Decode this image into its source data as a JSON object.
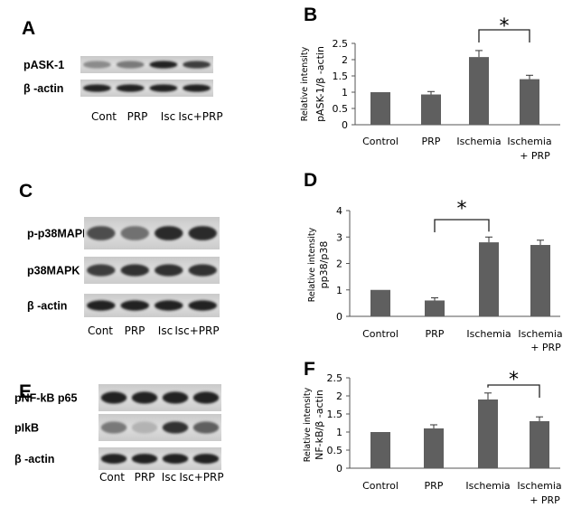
{
  "blots": [
    {
      "letter": "A",
      "bands": [
        {
          "label": "pASK-1",
          "intensity": [
            0.35,
            0.45,
            0.95,
            0.8
          ]
        },
        {
          "label": "β -actin",
          "intensity": [
            0.95,
            0.95,
            0.95,
            0.95
          ]
        }
      ],
      "lanes": [
        "Cont",
        "PRP",
        "Isc",
        "Isc+PRP"
      ]
    },
    {
      "letter": "C",
      "bands": [
        {
          "label": "p-p38MAPK",
          "intensity": [
            0.7,
            0.5,
            0.9,
            0.9
          ]
        },
        {
          "label": "p38MAPK",
          "intensity": [
            0.8,
            0.85,
            0.85,
            0.85
          ]
        },
        {
          "label": "β -actin",
          "intensity": [
            0.95,
            0.95,
            0.95,
            0.95
          ]
        }
      ],
      "lanes": [
        "Cont",
        "PRP",
        "Isc",
        "Isc+PRP"
      ]
    },
    {
      "letter": "E",
      "bands": [
        {
          "label": "pNF-kB p65",
          "intensity": [
            0.95,
            0.95,
            0.95,
            0.95
          ]
        },
        {
          "label": "pIkB",
          "intensity": [
            0.45,
            0.12,
            0.85,
            0.6
          ]
        },
        {
          "label": "β -actin",
          "intensity": [
            0.95,
            0.95,
            0.95,
            0.95
          ]
        }
      ],
      "lanes": [
        "Cont",
        "PRP",
        "Isc",
        "Isc+PRP"
      ]
    }
  ],
  "chart_data": [
    {
      "letter": "B",
      "type": "bar",
      "categories": [
        "Control",
        "PRP",
        "Ischemia",
        "Ischemia\n+ PRP"
      ],
      "values": [
        1.0,
        0.93,
        2.08,
        1.4
      ],
      "errors": [
        0,
        0.09,
        0.2,
        0.12
      ],
      "ylabel_top": "Relative intensity",
      "ylabel_bottom": "pASK-1/β -actin",
      "ylim": [
        0,
        2.5
      ],
      "yticks": [
        0,
        0.5,
        1,
        1.5,
        2,
        2.5
      ],
      "ytick_labels": [
        "0",
        "0.5",
        "1",
        "1.5",
        "2",
        "2.5"
      ],
      "significance": {
        "from": 2,
        "to": 3,
        "label": "*"
      },
      "bar_color": "#5f5f5f"
    },
    {
      "letter": "D",
      "type": "bar",
      "categories": [
        "Control",
        "PRP",
        "Ischemia",
        "Ischemia\n+ PRP"
      ],
      "values": [
        1.0,
        0.6,
        2.8,
        2.7
      ],
      "errors": [
        0,
        0.1,
        0.2,
        0.18
      ],
      "ylabel_top": "Relative intensity",
      "ylabel_bottom": "pp38/p38",
      "ylim": [
        0,
        4
      ],
      "yticks": [
        0,
        1,
        2,
        3,
        4
      ],
      "ytick_labels": [
        "0",
        "1",
        "2",
        "3",
        "4"
      ],
      "significance": {
        "from": 1,
        "to": 2,
        "label": "*"
      },
      "bar_color": "#5f5f5f"
    },
    {
      "letter": "F",
      "type": "bar",
      "categories": [
        "Control",
        "PRP",
        "Ischemia",
        "Ischemia\n+ PRP"
      ],
      "values": [
        1.0,
        1.1,
        1.9,
        1.3
      ],
      "errors": [
        0,
        0.1,
        0.18,
        0.12
      ],
      "ylabel_top": "Relative intensity",
      "ylabel_bottom": "NF-kB/β -actin",
      "ylim": [
        0,
        2.5
      ],
      "yticks": [
        0,
        0.5,
        1,
        1.5,
        2,
        2.5
      ],
      "ytick_labels": [
        "0",
        "0.5",
        "1",
        "1.5",
        "2",
        "2.5"
      ],
      "significance": {
        "from": 2,
        "to": 3,
        "label": "*"
      },
      "bar_color": "#5f5f5f"
    }
  ]
}
